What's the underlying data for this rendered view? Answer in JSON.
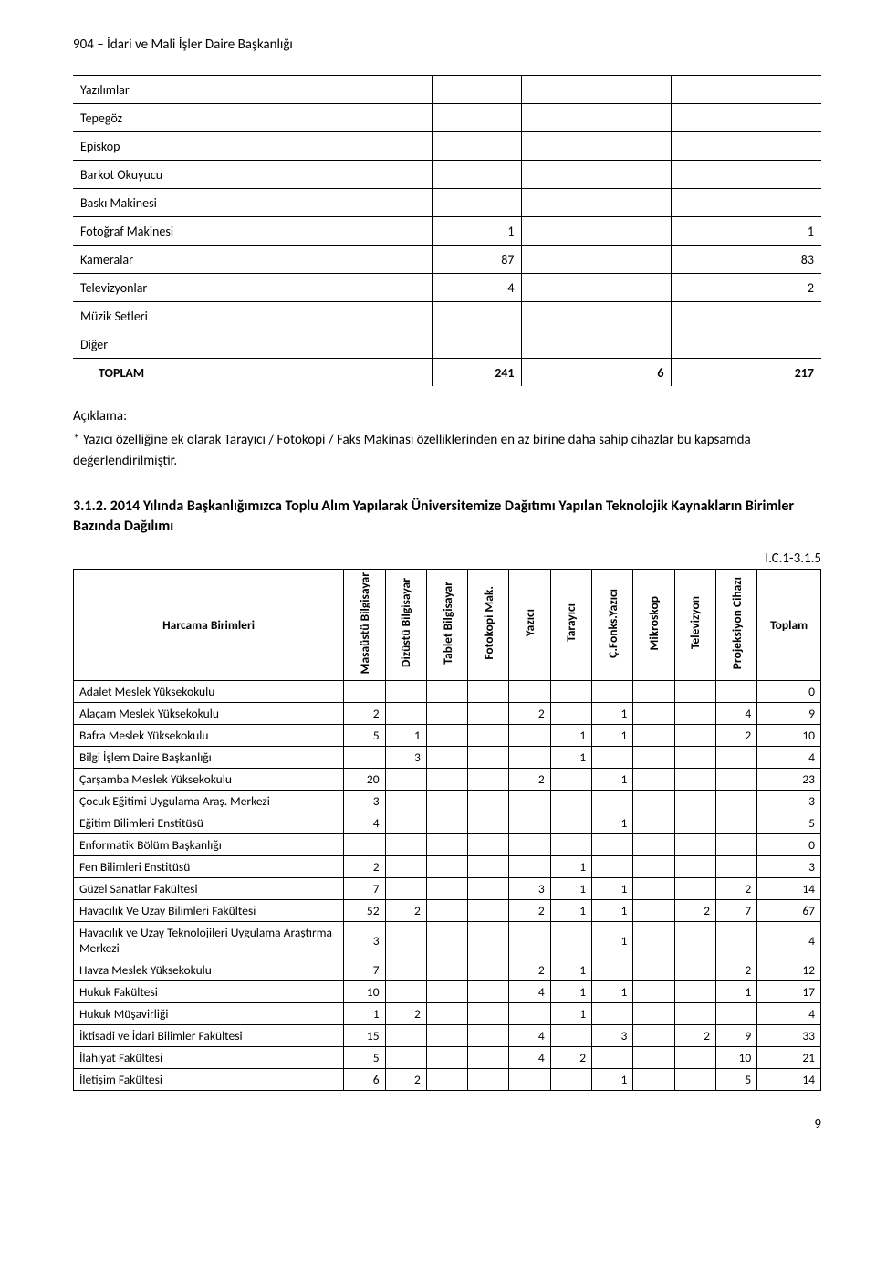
{
  "header": "904 – İdari ve Mali İşler Daire Başkanlığı",
  "inventory": {
    "rows": [
      {
        "label": "Yazılımlar",
        "c1": "",
        "c2": "",
        "c3": ""
      },
      {
        "label": "Tepegöz",
        "c1": "",
        "c2": "",
        "c3": ""
      },
      {
        "label": "Episkop",
        "c1": "",
        "c2": "",
        "c3": ""
      },
      {
        "label": "Barkot Okuyucu",
        "c1": "",
        "c2": "",
        "c3": ""
      },
      {
        "label": "Baskı Makinesi",
        "c1": "",
        "c2": "",
        "c3": ""
      },
      {
        "label": "Fotoğraf Makinesi",
        "c1": "1",
        "c2": "",
        "c3": "1"
      },
      {
        "label": "Kameralar",
        "c1": "87",
        "c2": "",
        "c3": "83"
      },
      {
        "label": "Televizyonlar",
        "c1": "4",
        "c2": "",
        "c3": "2"
      },
      {
        "label": "Müzik Setleri",
        "c1": "",
        "c2": "",
        "c3": ""
      },
      {
        "label": "Diğer",
        "c1": "",
        "c2": "",
        "c3": ""
      }
    ],
    "total": {
      "label": "TOPLAM",
      "c1": "241",
      "c2": "6",
      "c3": "217"
    }
  },
  "explanation": {
    "label": "Açıklama:",
    "text": "* Yazıcı özelliğine ek olarak Tarayıcı / Fotokopi / Faks Makinası özelliklerinden en az birine daha sahip cihazlar bu kapsamda değerlendirilmiştir."
  },
  "section": {
    "heading": "3.1.2.  2014 Yılında Başkanlığımızca Toplu Alım Yapılarak Üniversitemize Dağıtımı Yapılan Teknolojik Kaynakların Birimler Bazında Dağılımı"
  },
  "table2": {
    "code": "I.C.1-3.1.5",
    "headers": {
      "unit": "Harcama Birimleri",
      "cols": [
        "Masaüstü Bilgisayar",
        "Dizüstü Bilgisayar",
        "Tablet Bilgisayar",
        "Fotokopi Mak.",
        "Yazıcı",
        "Tarayıcı",
        "Ç.Fonks.Yazıcı",
        "Mikroskop",
        "Televizyon",
        "Projeksiyon Cihazı"
      ],
      "total": "Toplam"
    },
    "rows": [
      {
        "unit": "Adalet Meslek Yüksekokulu",
        "v": [
          "",
          "",
          "",
          "",
          "",
          "",
          "",
          "",
          "",
          ""
        ],
        "total": "0"
      },
      {
        "unit": "Alaçam Meslek Yüksekokulu",
        "v": [
          "2",
          "",
          "",
          "",
          "2",
          "",
          "1",
          "",
          "",
          "4"
        ],
        "total": "9"
      },
      {
        "unit": "Bafra Meslek Yüksekokulu",
        "v": [
          "5",
          "1",
          "",
          "",
          "",
          "1",
          "1",
          "",
          "",
          "2"
        ],
        "total": "10"
      },
      {
        "unit": "Bilgi İşlem Daire Başkanlığı",
        "v": [
          "",
          "3",
          "",
          "",
          "",
          "1",
          "",
          "",
          "",
          ""
        ],
        "total": "4"
      },
      {
        "unit": "Çarşamba Meslek Yüksekokulu",
        "v": [
          "20",
          "",
          "",
          "",
          "2",
          "",
          "1",
          "",
          "",
          ""
        ],
        "total": "23"
      },
      {
        "unit": "Çocuk Eğitimi Uygulama Araş. Merkezi",
        "v": [
          "3",
          "",
          "",
          "",
          "",
          "",
          "",
          "",
          "",
          ""
        ],
        "total": "3"
      },
      {
        "unit": "Eğitim Bilimleri Enstitüsü",
        "v": [
          "4",
          "",
          "",
          "",
          "",
          "",
          "1",
          "",
          "",
          ""
        ],
        "total": "5"
      },
      {
        "unit": "Enformatik Bölüm Başkanlığı",
        "v": [
          "",
          "",
          "",
          "",
          "",
          "",
          "",
          "",
          "",
          ""
        ],
        "total": "0"
      },
      {
        "unit": "Fen Bilimleri Enstitüsü",
        "v": [
          "2",
          "",
          "",
          "",
          "",
          "1",
          "",
          "",
          "",
          ""
        ],
        "total": "3"
      },
      {
        "unit": "Güzel Sanatlar Fakültesi",
        "v": [
          "7",
          "",
          "",
          "",
          "3",
          "1",
          "1",
          "",
          "",
          "2"
        ],
        "total": "14"
      },
      {
        "unit": "Havacılık Ve Uzay Bilimleri Fakültesi",
        "v": [
          "52",
          "2",
          "",
          "",
          "2",
          "1",
          "1",
          "",
          "2",
          "7"
        ],
        "total": "67"
      },
      {
        "unit": "Havacılık ve Uzay Teknolojileri Uygulama Araştırma Merkezi",
        "v": [
          "3",
          "",
          "",
          "",
          "",
          "",
          "1",
          "",
          "",
          ""
        ],
        "total": "4"
      },
      {
        "unit": "Havza Meslek Yüksekokulu",
        "v": [
          "7",
          "",
          "",
          "",
          "2",
          "1",
          "",
          "",
          "",
          "2"
        ],
        "total": "12"
      },
      {
        "unit": "Hukuk Fakültesi",
        "v": [
          "10",
          "",
          "",
          "",
          "4",
          "1",
          "1",
          "",
          "",
          "1"
        ],
        "total": "17"
      },
      {
        "unit": "Hukuk Müşavirliği",
        "v": [
          "1",
          "2",
          "",
          "",
          "",
          "1",
          "",
          "",
          "",
          ""
        ],
        "total": "4"
      },
      {
        "unit": "İktisadi ve İdari Bilimler Fakültesi",
        "v": [
          "15",
          "",
          "",
          "",
          "4",
          "",
          "3",
          "",
          "2",
          "9"
        ],
        "total": "33"
      },
      {
        "unit": "İlahiyat Fakültesi",
        "v": [
          "5",
          "",
          "",
          "",
          "4",
          "2",
          "",
          "",
          "",
          "10"
        ],
        "total": "21"
      },
      {
        "unit": "İletişim Fakültesi",
        "v": [
          "6",
          "2",
          "",
          "",
          "",
          "",
          "1",
          "",
          "",
          "5"
        ],
        "total": "14"
      }
    ]
  },
  "page_number": "9"
}
